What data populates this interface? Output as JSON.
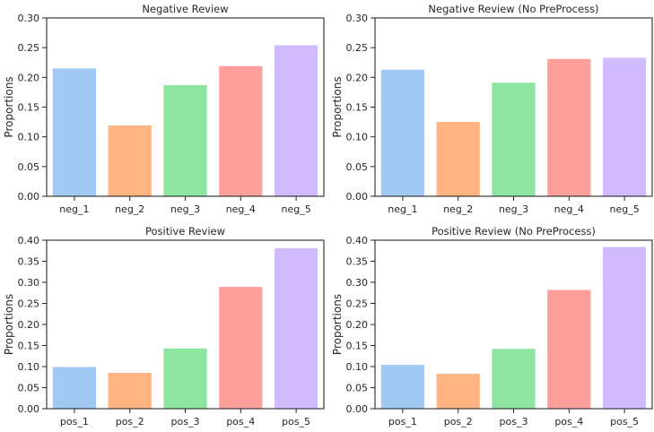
{
  "colors": [
    "#a1c9f4",
    "#ffb482",
    "#8de5a1",
    "#ff9f9b",
    "#d0bbff"
  ],
  "chart_data": [
    {
      "type": "bar",
      "title": "Negative Review",
      "ylabel": "Proportions",
      "xlabel": "",
      "categories": [
        "neg_1",
        "neg_2",
        "neg_3",
        "neg_4",
        "neg_5"
      ],
      "values": [
        0.215,
        0.119,
        0.187,
        0.219,
        0.254
      ],
      "ylim": [
        0,
        0.3
      ],
      "yticks": [
        0.0,
        0.05,
        0.1,
        0.15,
        0.2,
        0.25,
        0.3
      ],
      "ytick_labels": [
        "0.00",
        "0.05",
        "0.10",
        "0.15",
        "0.20",
        "0.25",
        "0.30"
      ],
      "grid": false
    },
    {
      "type": "bar",
      "title": "Negative Review (No PreProcess)",
      "ylabel": "Proportions",
      "xlabel": "",
      "categories": [
        "neg_1",
        "neg_2",
        "neg_3",
        "neg_4",
        "neg_5"
      ],
      "values": [
        0.213,
        0.125,
        0.191,
        0.231,
        0.233
      ],
      "ylim": [
        0,
        0.3
      ],
      "yticks": [
        0.0,
        0.05,
        0.1,
        0.15,
        0.2,
        0.25,
        0.3
      ],
      "ytick_labels": [
        "0.00",
        "0.05",
        "0.10",
        "0.15",
        "0.20",
        "0.25",
        "0.30"
      ],
      "grid": false
    },
    {
      "type": "bar",
      "title": "Positive Review",
      "ylabel": "Proportions",
      "xlabel": "",
      "categories": [
        "pos_1",
        "pos_2",
        "pos_3",
        "pos_4",
        "pos_5"
      ],
      "values": [
        0.099,
        0.085,
        0.143,
        0.289,
        0.381
      ],
      "ylim": [
        0,
        0.4
      ],
      "yticks": [
        0.0,
        0.05,
        0.1,
        0.15,
        0.2,
        0.25,
        0.3,
        0.35,
        0.4
      ],
      "ytick_labels": [
        "0.00",
        "0.05",
        "0.10",
        "0.15",
        "0.20",
        "0.25",
        "0.30",
        "0.35",
        "0.40"
      ],
      "grid": false
    },
    {
      "type": "bar",
      "title": "Positive Review (No PreProcess)",
      "ylabel": "Proportions",
      "xlabel": "",
      "categories": [
        "pos_1",
        "pos_2",
        "pos_3",
        "pos_4",
        "pos_5"
      ],
      "values": [
        0.104,
        0.083,
        0.142,
        0.282,
        0.384
      ],
      "ylim": [
        0,
        0.4
      ],
      "yticks": [
        0.0,
        0.05,
        0.1,
        0.15,
        0.2,
        0.25,
        0.3,
        0.35,
        0.4
      ],
      "ytick_labels": [
        "0.00",
        "0.05",
        "0.10",
        "0.15",
        "0.20",
        "0.25",
        "0.30",
        "0.35",
        "0.40"
      ],
      "grid": false
    }
  ]
}
